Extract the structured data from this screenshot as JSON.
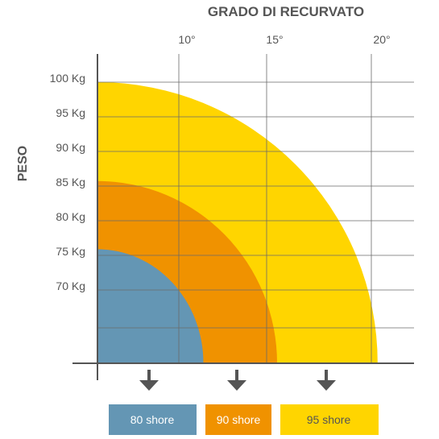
{
  "chart_data": {
    "type": "area",
    "title": "GRADO DI RECURVATO",
    "ylabel": "PESO",
    "xlabel": "",
    "x_ticks": [
      "10°",
      "15°",
      "20°"
    ],
    "y_ticks": [
      "100 Kg",
      "95 Kg",
      "90 Kg",
      "85 Kg",
      "80 Kg",
      "75 Kg",
      "70 Kg"
    ],
    "series": [
      {
        "name": "95 shore",
        "color": "#ffd500",
        "max_weight": 100,
        "max_degree": 20.3
      },
      {
        "name": "90 shore",
        "color": "#f09200",
        "max_weight": 85.5,
        "max_degree": 15.5
      },
      {
        "name": "80 shore",
        "color": "#6496b4",
        "max_weight": 75.5,
        "max_degree": 11.4
      }
    ],
    "grid": true,
    "legend": [
      "80 shore",
      "90 shore",
      "95 shore"
    ]
  }
}
